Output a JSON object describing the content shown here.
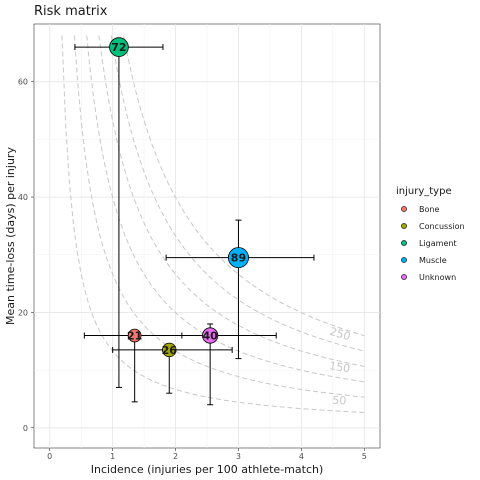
{
  "chart_data": {
    "type": "scatter",
    "title": "Risk matrix",
    "xlabel": "Incidence (injuries per 100 athlete-match)",
    "ylabel": "Mean time-loss (days) per injury",
    "xlim": [
      -0.25,
      5.25
    ],
    "ylim": [
      -3.5,
      70
    ],
    "x_ticks": [
      0,
      1,
      2,
      3,
      4,
      5
    ],
    "y_ticks": [
      0,
      20,
      40,
      60
    ],
    "grid": true,
    "legend": {
      "title": "injury_type",
      "position": "right"
    },
    "contours": [
      {
        "burden": 50,
        "label": "50"
      },
      {
        "burden": 100,
        "label": ""
      },
      {
        "burden": 150,
        "label": "150"
      },
      {
        "burden": 200,
        "label": ""
      },
      {
        "burden": 250,
        "label": "250"
      },
      {
        "burden": 300,
        "label": ""
      }
    ],
    "series": [
      {
        "name": "Bone",
        "color": "#F8766D",
        "x": 1.35,
        "y": 16,
        "label": "21",
        "xerr": [
          0.55,
          2.1
        ],
        "yerr": [
          4.5,
          16
        ]
      },
      {
        "name": "Concussion",
        "color": "#A3A500",
        "x": 1.9,
        "y": 13.5,
        "label": "26",
        "xerr": [
          1.0,
          2.9
        ],
        "yerr": [
          6,
          13.5
        ]
      },
      {
        "name": "Ligament",
        "color": "#00BF7D",
        "x": 1.1,
        "y": 66,
        "label": "72",
        "xerr": [
          0.4,
          1.8
        ],
        "yerr": [
          7,
          66
        ]
      },
      {
        "name": "Muscle",
        "color": "#00B0F6",
        "x": 3.0,
        "y": 29.5,
        "label": "89",
        "xerr": [
          1.85,
          4.2
        ],
        "yerr": [
          12,
          36
        ]
      },
      {
        "name": "Unknown",
        "color": "#E76BF3",
        "x": 2.55,
        "y": 16,
        "label": "40",
        "xerr": [
          1.25,
          3.6
        ],
        "yerr": [
          4,
          18
        ]
      }
    ]
  }
}
